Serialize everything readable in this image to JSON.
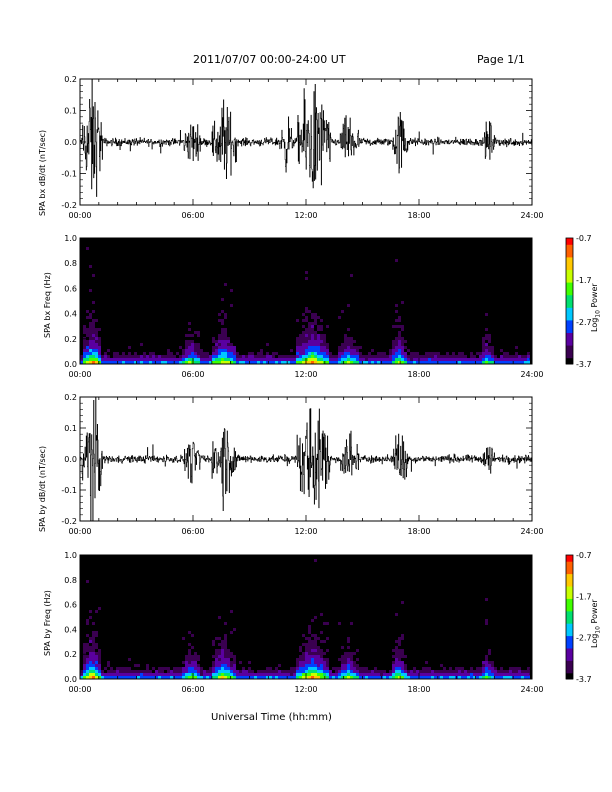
{
  "header": {
    "title": "2011/07/07  00:00-24:00 UT",
    "page": "Page 1/1"
  },
  "xlabel": "Universal Time (hh:mm)",
  "colors": {
    "colormap": [
      "#000000",
      "#3a0050",
      "#5a00a0",
      "#0040ff",
      "#00c8ff",
      "#00e070",
      "#40ff00",
      "#c8ff00",
      "#ffc800",
      "#ff6000",
      "#ff0000"
    ]
  },
  "chart_data": [
    {
      "type": "line",
      "ylabel": "SPA bx dB/dt (nT/sec)",
      "x_ticks": [
        "00:00",
        "06:00",
        "12:00",
        "18:00",
        "24:00"
      ],
      "xlim": [
        0,
        24
      ],
      "ylim": [
        -0.2,
        0.2
      ],
      "y_ticks": [
        "0.2",
        "0.1",
        "0.0",
        "-0.1",
        "-0.2"
      ],
      "activity": [
        {
          "start": 0.1,
          "end": 1.2,
          "amp": 0.3
        },
        {
          "start": 5.5,
          "end": 6.4,
          "amp": 0.1
        },
        {
          "start": 7.0,
          "end": 8.3,
          "amp": 0.2
        },
        {
          "start": 10.6,
          "end": 11.3,
          "amp": 0.12
        },
        {
          "start": 11.5,
          "end": 13.3,
          "amp": 0.3
        },
        {
          "start": 13.8,
          "end": 14.8,
          "amp": 0.13
        },
        {
          "start": 16.6,
          "end": 17.4,
          "amp": 0.16
        },
        {
          "start": 21.4,
          "end": 22.0,
          "amp": 0.1
        }
      ]
    },
    {
      "type": "heatmap",
      "ylabel": "SPA bx Freq (Hz)",
      "x_ticks": [
        "00:00",
        "06:00",
        "12:00",
        "18:00",
        "24:00"
      ],
      "xlim": [
        0,
        24
      ],
      "ylim": [
        0.0,
        1.0
      ],
      "y_ticks": [
        "1.0",
        "0.8",
        "0.6",
        "0.4",
        "0.2",
        "0.0"
      ],
      "colorbar": {
        "label": "Log10 Power",
        "ticks": [
          "-0.7",
          "-1.7",
          "-2.7",
          "-3.7"
        ],
        "range": [
          -3.7,
          -0.7
        ]
      },
      "activity": [
        {
          "start": 0.1,
          "end": 1.2,
          "amp": 1.0
        },
        {
          "start": 5.5,
          "end": 6.4,
          "amp": 0.6
        },
        {
          "start": 7.0,
          "end": 8.3,
          "amp": 0.8
        },
        {
          "start": 11.5,
          "end": 13.3,
          "amp": 1.0
        },
        {
          "start": 13.8,
          "end": 14.8,
          "amp": 0.6
        },
        {
          "start": 16.6,
          "end": 17.4,
          "amp": 0.7
        },
        {
          "start": 21.4,
          "end": 22.0,
          "amp": 0.5
        }
      ]
    },
    {
      "type": "line",
      "ylabel": "SPA by dB/dt (nT/sec)",
      "x_ticks": [
        "00:00",
        "06:00",
        "12:00",
        "18:00",
        "24:00"
      ],
      "xlim": [
        0,
        24
      ],
      "ylim": [
        -0.2,
        0.2
      ],
      "y_ticks": [
        "0.2",
        "0.1",
        "0.0",
        "-0.1",
        "-0.2"
      ],
      "activity": [
        {
          "start": 0.1,
          "end": 1.2,
          "amp": 0.3
        },
        {
          "start": 5.5,
          "end": 6.4,
          "amp": 0.1
        },
        {
          "start": 7.0,
          "end": 8.3,
          "amp": 0.2
        },
        {
          "start": 11.5,
          "end": 13.3,
          "amp": 0.3
        },
        {
          "start": 13.8,
          "end": 14.8,
          "amp": 0.12
        },
        {
          "start": 16.6,
          "end": 17.4,
          "amp": 0.14
        },
        {
          "start": 21.4,
          "end": 22.0,
          "amp": 0.08
        }
      ]
    },
    {
      "type": "heatmap",
      "ylabel": "SPA by Freq (Hz)",
      "x_ticks": [
        "00:00",
        "06:00",
        "12:00",
        "18:00",
        "24:00"
      ],
      "xlim": [
        0,
        24
      ],
      "ylim": [
        0.0,
        1.0
      ],
      "y_ticks": [
        "1.0",
        "0.8",
        "0.6",
        "0.4",
        "0.2",
        "0.0"
      ],
      "colorbar": {
        "label": "Log10 Power",
        "ticks": [
          "-0.7",
          "-1.7",
          "-2.7",
          "-3.7"
        ],
        "range": [
          -3.7,
          -0.7
        ]
      },
      "activity": [
        {
          "start": 0.1,
          "end": 1.2,
          "amp": 1.0
        },
        {
          "start": 5.5,
          "end": 6.4,
          "amp": 0.6
        },
        {
          "start": 7.0,
          "end": 8.3,
          "amp": 0.8
        },
        {
          "start": 11.5,
          "end": 13.3,
          "amp": 1.0
        },
        {
          "start": 13.8,
          "end": 14.8,
          "amp": 0.6
        },
        {
          "start": 16.6,
          "end": 17.4,
          "amp": 0.7
        },
        {
          "start": 21.4,
          "end": 22.0,
          "amp": 0.5
        }
      ]
    }
  ]
}
